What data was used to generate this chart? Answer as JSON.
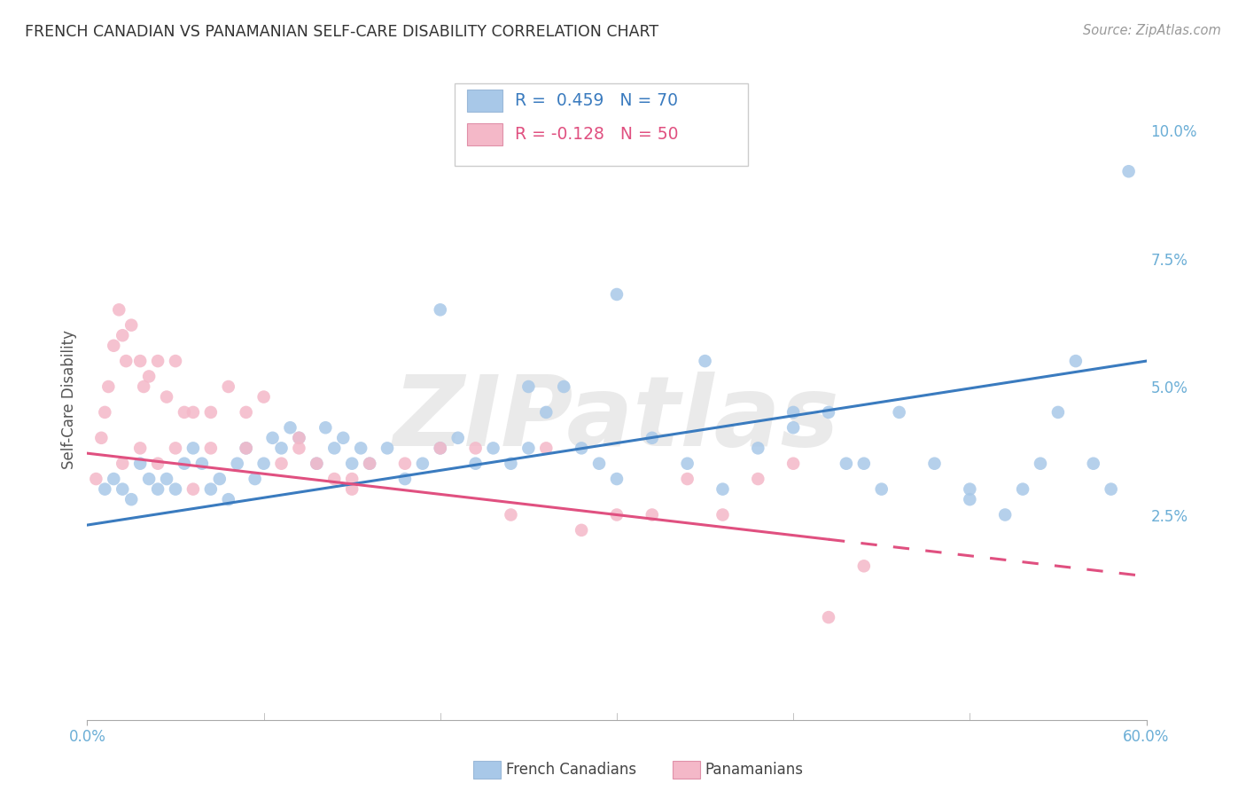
{
  "title": "FRENCH CANADIAN VS PANAMANIAN SELF-CARE DISABILITY CORRELATION CHART",
  "source": "Source: ZipAtlas.com",
  "ylabel": "Self-Care Disability",
  "right_yticks": [
    10.0,
    7.5,
    5.0,
    2.5
  ],
  "legend_blue_r": "0.459",
  "legend_blue_n": "70",
  "legend_pink_r": "-0.128",
  "legend_pink_n": "50",
  "legend_label_blue": "French Canadians",
  "legend_label_pink": "Panamanians",
  "blue_color": "#a8c8e8",
  "pink_color": "#f4b8c8",
  "blue_line_color": "#3a7bbf",
  "pink_line_color": "#e05080",
  "watermark": "ZIPatlas",
  "blue_scatter_x": [
    1.0,
    1.5,
    2.0,
    2.5,
    3.0,
    3.5,
    4.0,
    4.5,
    5.0,
    5.5,
    6.0,
    6.5,
    7.0,
    7.5,
    8.0,
    8.5,
    9.0,
    9.5,
    10.0,
    10.5,
    11.0,
    11.5,
    12.0,
    13.0,
    13.5,
    14.0,
    14.5,
    15.0,
    15.5,
    16.0,
    17.0,
    18.0,
    19.0,
    20.0,
    21.0,
    22.0,
    23.0,
    24.0,
    25.0,
    26.0,
    27.0,
    28.0,
    29.0,
    30.0,
    32.0,
    34.0,
    36.0,
    38.0,
    40.0,
    43.0,
    45.0,
    48.0,
    50.0,
    53.0,
    55.0,
    57.0,
    20.0,
    25.0,
    30.0,
    35.0,
    40.0,
    42.0,
    44.0,
    46.0,
    50.0,
    52.0,
    54.0,
    56.0,
    58.0,
    59.0
  ],
  "blue_scatter_y": [
    3.0,
    3.2,
    3.0,
    2.8,
    3.5,
    3.2,
    3.0,
    3.2,
    3.0,
    3.5,
    3.8,
    3.5,
    3.0,
    3.2,
    2.8,
    3.5,
    3.8,
    3.2,
    3.5,
    4.0,
    3.8,
    4.2,
    4.0,
    3.5,
    4.2,
    3.8,
    4.0,
    3.5,
    3.8,
    3.5,
    3.8,
    3.2,
    3.5,
    3.8,
    4.0,
    3.5,
    3.8,
    3.5,
    3.8,
    4.5,
    5.0,
    3.8,
    3.5,
    3.2,
    4.0,
    3.5,
    3.0,
    3.8,
    4.2,
    3.5,
    3.0,
    3.5,
    3.0,
    3.0,
    4.5,
    3.5,
    6.5,
    5.0,
    6.8,
    5.5,
    4.5,
    4.5,
    3.5,
    4.5,
    2.8,
    2.5,
    3.5,
    5.5,
    3.0,
    9.2
  ],
  "pink_scatter_x": [
    0.5,
    0.8,
    1.0,
    1.2,
    1.5,
    1.8,
    2.0,
    2.2,
    2.5,
    3.0,
    3.2,
    3.5,
    4.0,
    4.5,
    5.0,
    5.5,
    6.0,
    7.0,
    8.0,
    9.0,
    10.0,
    11.0,
    12.0,
    13.0,
    14.0,
    15.0,
    16.0,
    18.0,
    20.0,
    22.0,
    24.0,
    26.0,
    28.0,
    30.0,
    32.0,
    34.0,
    36.0,
    38.0,
    40.0,
    42.0,
    44.0,
    4.0,
    6.0,
    2.0,
    3.0,
    5.0,
    7.0,
    9.0,
    12.0,
    15.0
  ],
  "pink_scatter_y": [
    3.2,
    4.0,
    4.5,
    5.0,
    5.8,
    6.5,
    6.0,
    5.5,
    6.2,
    5.5,
    5.0,
    5.2,
    5.5,
    4.8,
    5.5,
    4.5,
    4.5,
    4.5,
    5.0,
    4.5,
    4.8,
    3.5,
    3.8,
    3.5,
    3.2,
    3.0,
    3.5,
    3.5,
    3.8,
    3.8,
    2.5,
    3.8,
    2.2,
    2.5,
    2.5,
    3.2,
    2.5,
    3.2,
    3.5,
    0.5,
    1.5,
    3.5,
    3.0,
    3.5,
    3.8,
    3.8,
    3.8,
    3.8,
    4.0,
    3.2
  ],
  "blue_line_x0": 0.0,
  "blue_line_x1": 60.0,
  "blue_line_y0": 2.3,
  "blue_line_y1": 5.5,
  "pink_line_x0": 0.0,
  "pink_line_x1": 60.0,
  "pink_line_y0": 3.7,
  "pink_line_y1": 1.3,
  "pink_solid_end_x": 42.0,
  "xmin": 0.0,
  "xmax": 60.0,
  "ymin": -1.5,
  "ymax": 11.0,
  "background_color": "#ffffff",
  "grid_color": "#d8d8d8",
  "title_color": "#333333",
  "tick_color": "#6baed6",
  "axis_color": "#aaaaaa"
}
